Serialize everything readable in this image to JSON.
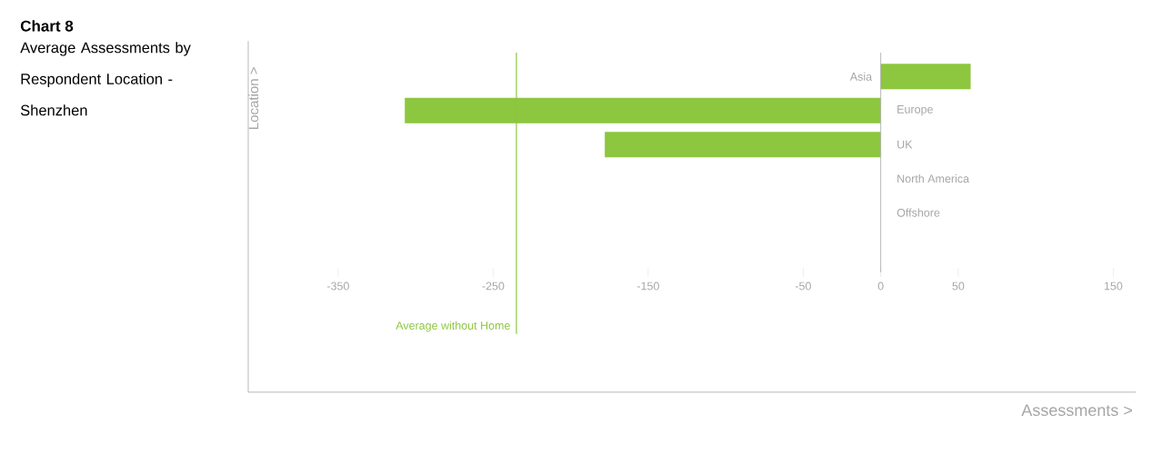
{
  "chart_data": {
    "type": "bar",
    "orientation": "horizontal",
    "title": "Chart 8",
    "subtitle": "Average Assessments by Respondent Location - Shenzhen",
    "annotations": [
      "Assessments >"
    ],
    "ylabel": "Location >",
    "categories": [
      "Asia",
      "Europe",
      "UK",
      "North America",
      "Offshore"
    ],
    "values": [
      58,
      -307,
      -178,
      0,
      0
    ],
    "color": "#8dc63f",
    "xlim": [
      -408,
      150
    ],
    "xticks": [
      -350,
      -250,
      -150,
      -50,
      0,
      50,
      150
    ],
    "ref_lines": [
      {
        "axis": "x",
        "value": -235,
        "label": "Average without Home",
        "color": "#8dc63f"
      }
    ]
  }
}
